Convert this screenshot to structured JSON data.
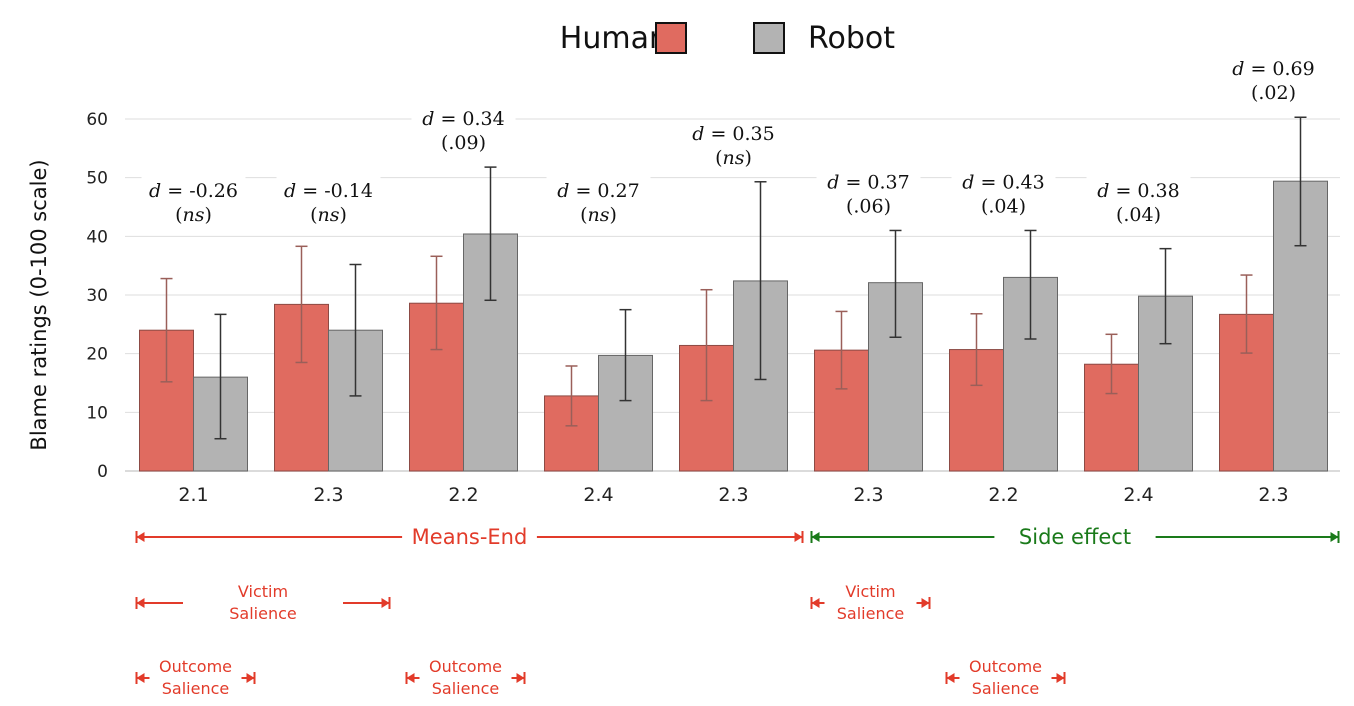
{
  "chart_data": {
    "type": "bar",
    "title": "",
    "xlabel": "",
    "ylabel": "Blame ratings (0-100 scale)",
    "ylim": [
      0,
      60
    ],
    "yticks": [
      0,
      10,
      20,
      30,
      40,
      50,
      60
    ],
    "grid": true,
    "legend_position": "top-center",
    "categories": [
      "2.1",
      "2.3",
      "2.2",
      "2.4",
      "2.3",
      "2.3",
      "2.2",
      "2.4",
      "2.3"
    ],
    "series": [
      {
        "name": "Human",
        "color": "#e06b60",
        "values": [
          24,
          28.4,
          28.6,
          12.8,
          21.4,
          20.6,
          20.7,
          18.2,
          26.7
        ],
        "error_low": [
          15.2,
          18.5,
          20.7,
          7.7,
          12,
          14,
          14.6,
          13.2,
          20.1
        ],
        "error_high": [
          32.8,
          38.3,
          36.6,
          17.9,
          30.9,
          27.2,
          26.8,
          23.3,
          33.4
        ]
      },
      {
        "name": "Robot",
        "color": "#b3b3b3",
        "values": [
          16,
          24,
          40.4,
          19.7,
          32.4,
          32.1,
          33,
          29.8,
          49.4
        ],
        "error_low": [
          5.5,
          12.8,
          29.1,
          12,
          15.6,
          22.8,
          22.5,
          21.7,
          38.4
        ],
        "error_high": [
          26.7,
          35.2,
          51.8,
          27.5,
          49.3,
          41,
          41,
          37.9,
          60.3
        ]
      }
    ],
    "annotations": [
      {
        "d": "-0.26",
        "p": "ns"
      },
      {
        "d": "-0.14",
        "p": "ns"
      },
      {
        "d": "0.34",
        "p": ".09"
      },
      {
        "d": "0.27",
        "p": "ns"
      },
      {
        "d": "0.35",
        "p": "ns"
      },
      {
        "d": "0.37",
        "p": ".06"
      },
      {
        "d": "0.43",
        "p": ".04"
      },
      {
        "d": "0.38",
        "p": ".04"
      },
      {
        "d": "0.69",
        "p": ".02"
      }
    ],
    "groupings": [
      {
        "label": "Means-End",
        "color": "#e23b2a",
        "from": 0,
        "to": 4
      },
      {
        "label": "Side effect",
        "color": "#1a7a1a",
        "from": 5,
        "to": 8
      }
    ],
    "conditions": [
      {
        "lines": [
          "Victim",
          "Salience"
        ],
        "color": "#e23b2a",
        "from": 0,
        "to": 1
      },
      {
        "lines": [
          "Victim",
          "Salience"
        ],
        "color": "#e23b2a",
        "from": 5,
        "to": 5
      },
      {
        "lines": [
          "Outcome",
          "Salience"
        ],
        "color": "#e23b2a",
        "from": 0,
        "to": 0
      },
      {
        "lines": [
          "Outcome",
          "Salience"
        ],
        "color": "#e23b2a",
        "from": 2,
        "to": 2
      },
      {
        "lines": [
          "Outcome",
          "Salience"
        ],
        "color": "#e23b2a",
        "from": 6,
        "to": 6
      }
    ]
  }
}
